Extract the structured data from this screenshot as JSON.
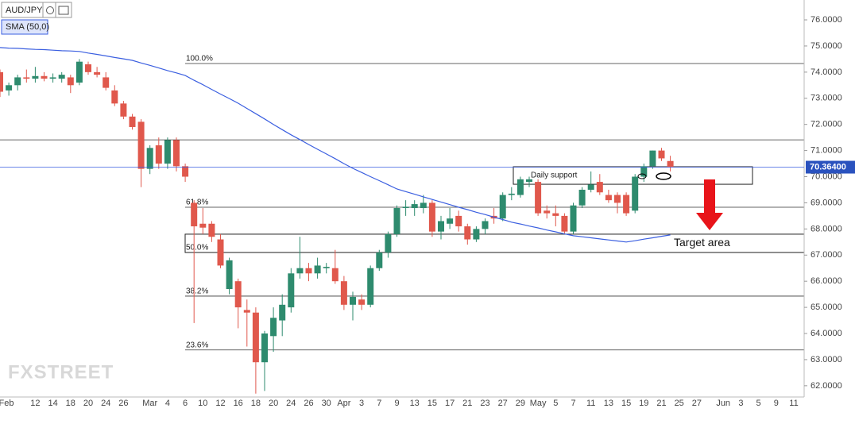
{
  "chart_data": {
    "type": "candlestick",
    "symbol": "AUD/JPY",
    "watermark": "FXSTREET",
    "categories": [
      "Feb",
      null,
      null,
      null,
      "12",
      null,
      "14",
      null,
      "18",
      null,
      "20",
      null,
      "24",
      null,
      "26",
      null,
      null,
      "Mar",
      null,
      "4",
      null,
      "6",
      null,
      "10",
      null,
      "12",
      null,
      "16",
      null,
      "18",
      null,
      "20",
      null,
      "24",
      null,
      "26",
      null,
      "30",
      null,
      "Apr",
      null,
      "3",
      null,
      "7",
      null,
      "9",
      null,
      "13",
      null,
      "15",
      null,
      "17",
      null,
      "21",
      null,
      "23",
      null,
      "27",
      null,
      "29",
      null,
      "May",
      null,
      "5",
      null,
      "7",
      null,
      "11",
      null,
      "13",
      null,
      "15",
      null,
      "19",
      null,
      "21",
      null,
      "25",
      null,
      "27",
      null,
      null,
      "Jun",
      null,
      "3",
      null,
      "5",
      null,
      "9",
      null,
      "11"
    ],
    "open": [
      74.0,
      73.3,
      73.5,
      73.8,
      73.75,
      73.85,
      73.75,
      73.75,
      73.8,
      73.6,
      74.3,
      74.0,
      73.8,
      73.3,
      72.8,
      72.3,
      72.1,
      70.3,
      71.2,
      70.5,
      71.4,
      70.4,
      69.0,
      68.2,
      68.2,
      67.6,
      65.7,
      66.0,
      64.9,
      64.8,
      62.9,
      63.9,
      64.5,
      65.0,
      66.3,
      66.5,
      66.3,
      66.5,
      66.5,
      66.0,
      65.1,
      65.3,
      65.1,
      66.5,
      67.1,
      67.8,
      68.8,
      68.8,
      68.8,
      69.0,
      67.9,
      68.2,
      68.5,
      68.1,
      67.6,
      68.0,
      68.5,
      68.4,
      69.3,
      69.3,
      69.8,
      69.8,
      68.7,
      68.6,
      68.5,
      67.9,
      68.9,
      69.5,
      69.8,
      69.3,
      69.3,
      69.3,
      68.7,
      70.0,
      70.4,
      71.0,
      70.6,
      null,
      null,
      null,
      null,
      null,
      null,
      null,
      null,
      null,
      null,
      null,
      null,
      null,
      null
    ],
    "high": [
      74.1,
      73.6,
      73.9,
      74.1,
      74.2,
      74.0,
      73.95,
      74.0,
      73.9,
      74.5,
      74.4,
      74.2,
      74.0,
      73.5,
      72.9,
      72.4,
      72.2,
      71.2,
      71.5,
      71.5,
      71.5,
      70.5,
      69.1,
      68.8,
      68.3,
      67.8,
      66.9,
      66.1,
      65.3,
      65.0,
      64.1,
      65.0,
      65.5,
      66.5,
      67.7,
      66.7,
      66.9,
      66.7,
      67.2,
      66.2,
      65.6,
      65.5,
      66.6,
      67.2,
      67.9,
      68.9,
      69.1,
      69.1,
      69.3,
      69.1,
      68.5,
      68.8,
      68.7,
      68.2,
      68.1,
      68.4,
      68.8,
      69.4,
      69.6,
      70.0,
      70.0,
      69.9,
      68.9,
      68.9,
      68.6,
      69.0,
      69.6,
      70.2,
      70.1,
      69.5,
      69.4,
      69.4,
      70.1,
      70.5,
      71.0,
      71.1,
      70.8,
      null,
      null,
      null,
      null,
      null,
      null,
      null,
      null,
      null,
      null,
      null,
      null,
      null,
      null
    ],
    "low": [
      73.05,
      73.1,
      73.3,
      73.6,
      73.6,
      73.65,
      73.6,
      73.6,
      73.2,
      73.5,
      73.9,
      73.8,
      73.3,
      72.7,
      72.2,
      71.8,
      69.6,
      70.1,
      70.3,
      70.3,
      70.2,
      69.8,
      64.4,
      67.8,
      67.5,
      66.5,
      65.5,
      64.2,
      63.5,
      61.7,
      61.8,
      63.3,
      63.9,
      64.8,
      66.1,
      66.0,
      66.1,
      66.3,
      65.9,
      64.9,
      64.5,
      64.9,
      65.0,
      66.4,
      66.9,
      67.7,
      68.5,
      68.5,
      68.6,
      67.7,
      67.6,
      68.0,
      67.9,
      67.4,
      67.5,
      67.8,
      68.2,
      68.3,
      69.1,
      69.2,
      69.6,
      68.5,
      68.4,
      68.1,
      67.8,
      67.8,
      68.8,
      69.4,
      69.3,
      69.0,
      68.6,
      68.5,
      68.6,
      69.8,
      70.3,
      70.6,
      70.2,
      null,
      null,
      null,
      null,
      null,
      null,
      null,
      null,
      null,
      null,
      null,
      null,
      null,
      null
    ],
    "close": [
      73.25,
      73.5,
      73.8,
      73.75,
      73.85,
      73.75,
      73.8,
      73.9,
      73.5,
      74.4,
      74.0,
      73.9,
      73.4,
      72.8,
      72.3,
      71.9,
      70.3,
      71.1,
      70.5,
      71.4,
      70.4,
      70.0,
      68.1,
      68.05,
      67.7,
      66.6,
      66.8,
      65.0,
      64.8,
      62.9,
      64.0,
      64.6,
      65.1,
      66.3,
      66.5,
      66.3,
      66.6,
      66.55,
      66.0,
      65.1,
      65.4,
      65.1,
      66.5,
      67.1,
      67.8,
      68.8,
      68.85,
      68.95,
      69.0,
      67.9,
      68.3,
      68.4,
      68.1,
      67.6,
      68.0,
      68.3,
      68.4,
      69.3,
      69.35,
      69.9,
      69.9,
      68.6,
      68.6,
      68.5,
      67.9,
      68.9,
      69.5,
      69.7,
      69.4,
      69.1,
      69.0,
      68.6,
      70.0,
      70.4,
      71.0,
      70.7,
      70.36,
      null,
      null,
      null,
      null,
      null,
      null,
      null,
      null,
      null,
      null,
      null,
      null,
      null,
      null
    ],
    "up_color": "#2e8b6e",
    "down_color": "#e0584c",
    "series": [
      {
        "name": "SMA (50,0)",
        "color": "#3b5fe0",
        "values": [
          74.94,
          74.92,
          74.91,
          74.89,
          74.87,
          74.86,
          74.84,
          74.82,
          74.81,
          74.79,
          74.73,
          74.68,
          74.62,
          74.56,
          74.51,
          74.45,
          74.35,
          74.26,
          74.16,
          74.06,
          73.97,
          73.87,
          73.69,
          73.52,
          73.34,
          73.16,
          72.99,
          72.81,
          72.61,
          72.41,
          72.21,
          72.0,
          71.8,
          71.6,
          71.42,
          71.23,
          71.05,
          70.87,
          70.69,
          70.5,
          70.32,
          70.16,
          70.0,
          69.85,
          69.69,
          69.53,
          69.43,
          69.33,
          69.23,
          69.13,
          69.03,
          68.93,
          68.83,
          68.74,
          68.64,
          68.55,
          68.45,
          68.36,
          68.26,
          68.19,
          68.11,
          68.04,
          67.96,
          67.89,
          67.81,
          67.74,
          67.7,
          67.66,
          67.62,
          67.58,
          67.54,
          67.5,
          67.55,
          67.61,
          67.66,
          67.72,
          67.77,
          null,
          null,
          null,
          null,
          null,
          null,
          null,
          null,
          null,
          null,
          null,
          null,
          null,
          null
        ]
      }
    ],
    "ylim": [
      61.57,
      76.76
    ],
    "yticks": [
      {
        "value": 62,
        "label": "62.0000"
      },
      {
        "value": 63,
        "label": "63.0000"
      },
      {
        "value": 64,
        "label": "64.0000"
      },
      {
        "value": 65,
        "label": "65.0000"
      },
      {
        "value": 66,
        "label": "66.0000"
      },
      {
        "value": 67,
        "label": "67.0000"
      },
      {
        "value": 68,
        "label": "68.0000"
      },
      {
        "value": 69,
        "label": "69.0000"
      },
      {
        "value": 70,
        "label": "70.0000"
      },
      {
        "value": 71,
        "label": "71.0000"
      },
      {
        "value": 72,
        "label": "72.0000"
      },
      {
        "value": 73,
        "label": "73.0000"
      },
      {
        "value": 74,
        "label": "74.0000"
      },
      {
        "value": 75,
        "label": "75.0000"
      },
      {
        "value": 76,
        "label": "76.0000"
      }
    ],
    "last_price": {
      "value": 70.364,
      "label": "70.36400"
    },
    "resistance_line": 71.41,
    "levels": [
      {
        "value": 74.33,
        "label": "100.0%"
      },
      {
        "value": 68.83,
        "label": "61.8%"
      },
      {
        "value": 67.1,
        "label": "50.0%"
      },
      {
        "value": 65.43,
        "label": "38.2%"
      },
      {
        "value": 63.37,
        "label": "23.6%"
      }
    ],
    "zones": [
      {
        "label": "Daily support",
        "top": 70.38,
        "bottom": 69.71
      },
      {
        "label": "Target area",
        "top": 67.8,
        "bottom": 67.1
      }
    ]
  }
}
